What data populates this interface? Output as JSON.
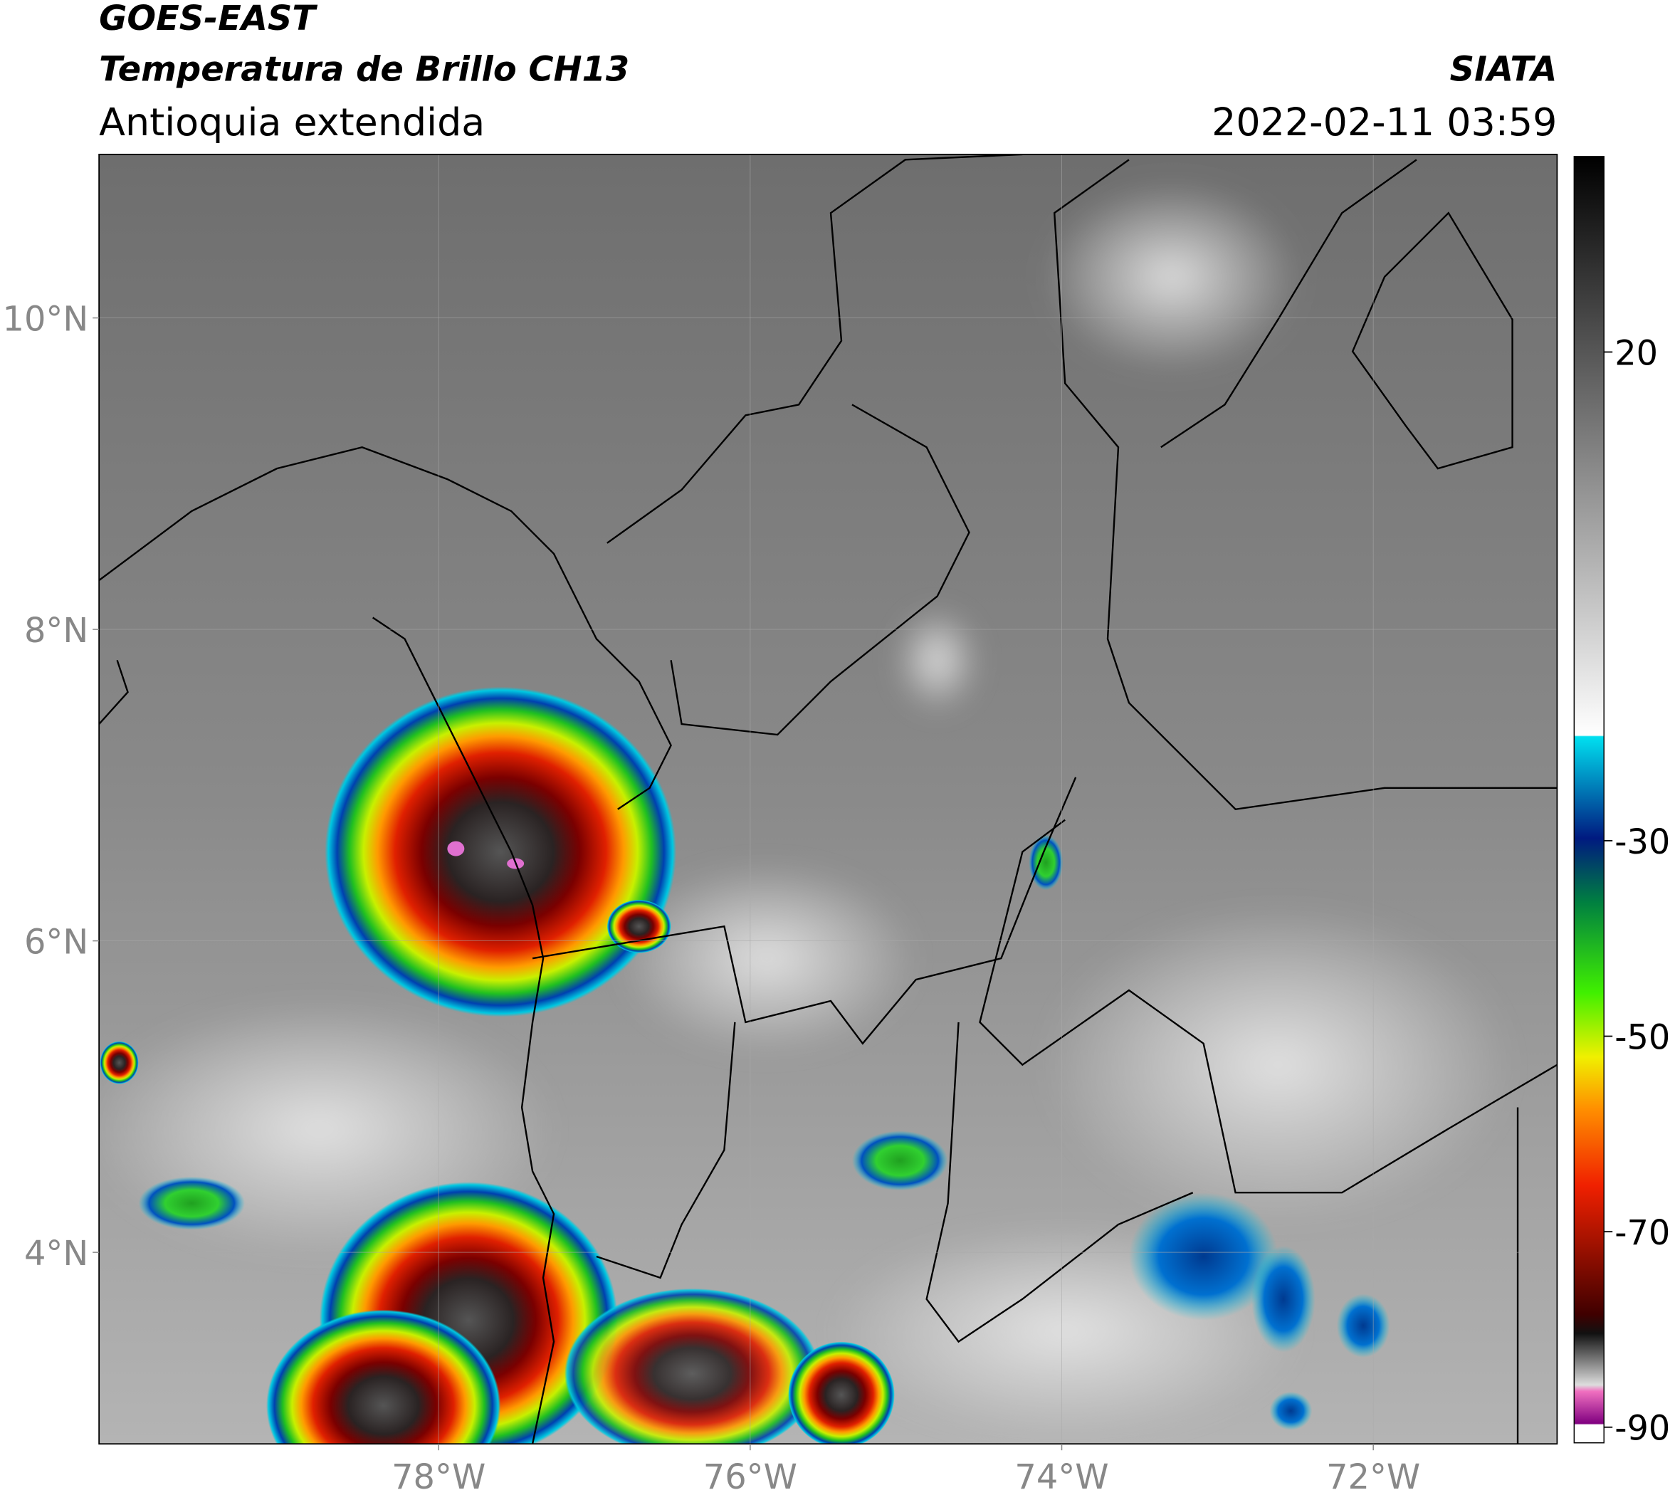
{
  "header": {
    "title": "GOES-EAST",
    "subtitle": "Temperatura de Brillo CH13",
    "region": "Antioquia extendida",
    "source": "SIATA",
    "datetime": "2022-02-11 03:59"
  },
  "map": {
    "latlim": [
      2.77,
      11.05
    ],
    "lonlim": [
      -80.18,
      -70.82
    ],
    "lat_ticks": [
      {
        "value": 10,
        "label": "10°N"
      },
      {
        "value": 8,
        "label": "8°N"
      },
      {
        "value": 6,
        "label": "6°N"
      },
      {
        "value": 4,
        "label": "4°N"
      }
    ],
    "lon_ticks": [
      {
        "value": -78,
        "label": "78°W"
      },
      {
        "value": -76,
        "label": "76°W"
      },
      {
        "value": -74,
        "label": "74°W"
      },
      {
        "value": -72,
        "label": "72°W"
      }
    ],
    "grid": true
  },
  "colorbar": {
    "lim": [
      -91.6,
      40
    ],
    "ticks": [
      20,
      -30,
      -50,
      -70,
      -90
    ]
  }
}
